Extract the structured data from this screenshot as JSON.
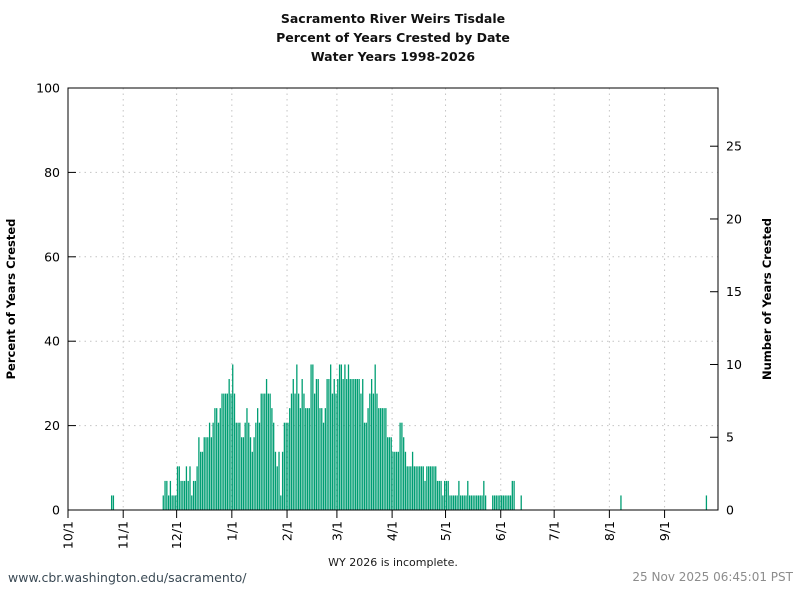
{
  "title": {
    "line1": "Sacramento River Weirs Tisdale",
    "line2": "Percent of Years Crested by Date",
    "line3": "Water Years 1998-2026"
  },
  "y_axis_left": {
    "label": "Percent of Years Crested",
    "ticks": [
      0,
      20,
      40,
      60,
      80,
      100
    ]
  },
  "y_axis_right": {
    "label": "Number of Years Crested",
    "ticks": [
      0,
      5,
      10,
      15,
      20,
      25
    ]
  },
  "footer": {
    "url": "www.cbr.washington.edu/sacramento/",
    "note": "WY 2026 is incomplete.",
    "timestamp": "25 Nov 2025 06:45:01 PST"
  },
  "colors": {
    "bar": "#009E73",
    "grid": "#c4c4c4",
    "axis": "#000000",
    "url_text": "#3b4a55",
    "timestamp_text": "#8c8c8c"
  },
  "chart_data": {
    "type": "bar",
    "title": "Sacramento River Weirs Tisdale - Percent of Years Crested by Date - Water Years 1998-2026",
    "xlabel": "",
    "ylabel": "Percent of Years Crested",
    "ylabel_right": "Number of Years Crested",
    "ylim_percent": [
      0,
      100
    ],
    "right_axis_years_ticks": [
      0,
      5,
      10,
      15,
      20,
      25
    ],
    "grid": "dotted, horizontal at 20/40/60/80 percent and vertical at month starts",
    "legend": "none",
    "total_years": 29,
    "note": "one bar per calendar day; value = number of water years 1998-2026 in which the weir crested on that date; percent = years/29*100",
    "x_tick_labels": [
      "10/1",
      "11/1",
      "12/1",
      "1/1",
      "2/1",
      "3/1",
      "4/1",
      "5/1",
      "6/1",
      "7/1",
      "8/1",
      "9/1"
    ],
    "months_order": [
      "Oct",
      "Nov",
      "Dec",
      "Jan",
      "Feb",
      "Mar",
      "Apr",
      "May",
      "Jun",
      "Jul",
      "Aug",
      "Sep"
    ],
    "days_per_month": {
      "Oct": 31,
      "Nov": 30,
      "Dec": 31,
      "Jan": 31,
      "Feb": 28,
      "Mar": 31,
      "Apr": 30,
      "May": 31,
      "Jun": 30,
      "Jul": 31,
      "Aug": 31,
      "Sep": 30
    },
    "daily_years_crested": {
      "Oct": [
        0,
        0,
        0,
        0,
        0,
        0,
        0,
        0,
        0,
        0,
        0,
        0,
        0,
        0,
        0,
        0,
        0,
        0,
        0,
        0,
        0,
        0,
        0,
        0,
        1,
        1,
        0,
        0,
        0,
        0,
        0
      ],
      "Nov": [
        0,
        0,
        0,
        0,
        0,
        0,
        0,
        0,
        0,
        0,
        0,
        0,
        0,
        0,
        0,
        0,
        0,
        0,
        0,
        0,
        0,
        0,
        1,
        2,
        2,
        1,
        2,
        1,
        1,
        1
      ],
      "Dec": [
        3,
        3,
        2,
        2,
        2,
        3,
        2,
        3,
        1,
        2,
        2,
        3,
        5,
        4,
        4,
        5,
        5,
        5,
        6,
        5,
        6,
        7,
        7,
        6,
        7,
        8,
        8,
        8,
        8,
        9,
        8
      ],
      "Jan": [
        10,
        8,
        6,
        6,
        6,
        5,
        5,
        6,
        7,
        6,
        5,
        4,
        5,
        6,
        7,
        6,
        8,
        8,
        8,
        9,
        8,
        8,
        7,
        6,
        4,
        3,
        4,
        1,
        4,
        6,
        6
      ],
      "Feb": [
        6,
        7,
        8,
        9,
        8,
        10,
        8,
        7,
        9,
        8,
        7,
        7,
        7,
        10,
        10,
        8,
        9,
        9,
        7,
        7,
        6,
        7,
        9,
        9,
        10,
        8,
        9,
        8
      ],
      "Mar": [
        9,
        10,
        10,
        9,
        10,
        9,
        10,
        9,
        9,
        9,
        9,
        9,
        9,
        8,
        9,
        6,
        6,
        7,
        8,
        9,
        8,
        10,
        8,
        7,
        7,
        7,
        7,
        7,
        5,
        5,
        5
      ],
      "Apr": [
        4,
        4,
        4,
        4,
        6,
        6,
        5,
        4,
        3,
        3,
        3,
        4,
        3,
        3,
        3,
        3,
        3,
        3,
        2,
        3,
        3,
        3,
        3,
        3,
        3,
        2,
        2,
        2,
        1,
        2
      ],
      "May": [
        2,
        2,
        1,
        1,
        1,
        1,
        1,
        2,
        1,
        1,
        1,
        1,
        2,
        1,
        1,
        1,
        1,
        1,
        1,
        1,
        1,
        2,
        1,
        0,
        0,
        0,
        1,
        1,
        1,
        1,
        1
      ],
      "Jun": [
        1,
        1,
        1,
        1,
        1,
        1,
        2,
        2,
        0,
        0,
        0,
        1,
        0,
        0,
        0,
        0,
        0,
        0,
        0,
        0,
        0,
        0,
        0,
        0,
        0,
        0,
        0,
        0,
        0,
        0
      ],
      "Jul": [
        0,
        0,
        0,
        0,
        0,
        0,
        0,
        0,
        0,
        0,
        0,
        0,
        0,
        0,
        0,
        0,
        0,
        0,
        0,
        0,
        0,
        0,
        0,
        0,
        0,
        0,
        0,
        0,
        0,
        0,
        0
      ],
      "Aug": [
        0,
        0,
        0,
        0,
        0,
        0,
        1,
        0,
        0,
        0,
        0,
        0,
        0,
        0,
        0,
        0,
        0,
        0,
        0,
        0,
        0,
        0,
        0,
        0,
        0,
        0,
        0,
        0,
        0,
        0,
        0
      ],
      "Sep": [
        0,
        0,
        0,
        0,
        0,
        0,
        0,
        0,
        0,
        0,
        0,
        0,
        0,
        0,
        0,
        0,
        0,
        0,
        0,
        0,
        0,
        0,
        0,
        1,
        0,
        0,
        0,
        0,
        0,
        0
      ]
    }
  }
}
